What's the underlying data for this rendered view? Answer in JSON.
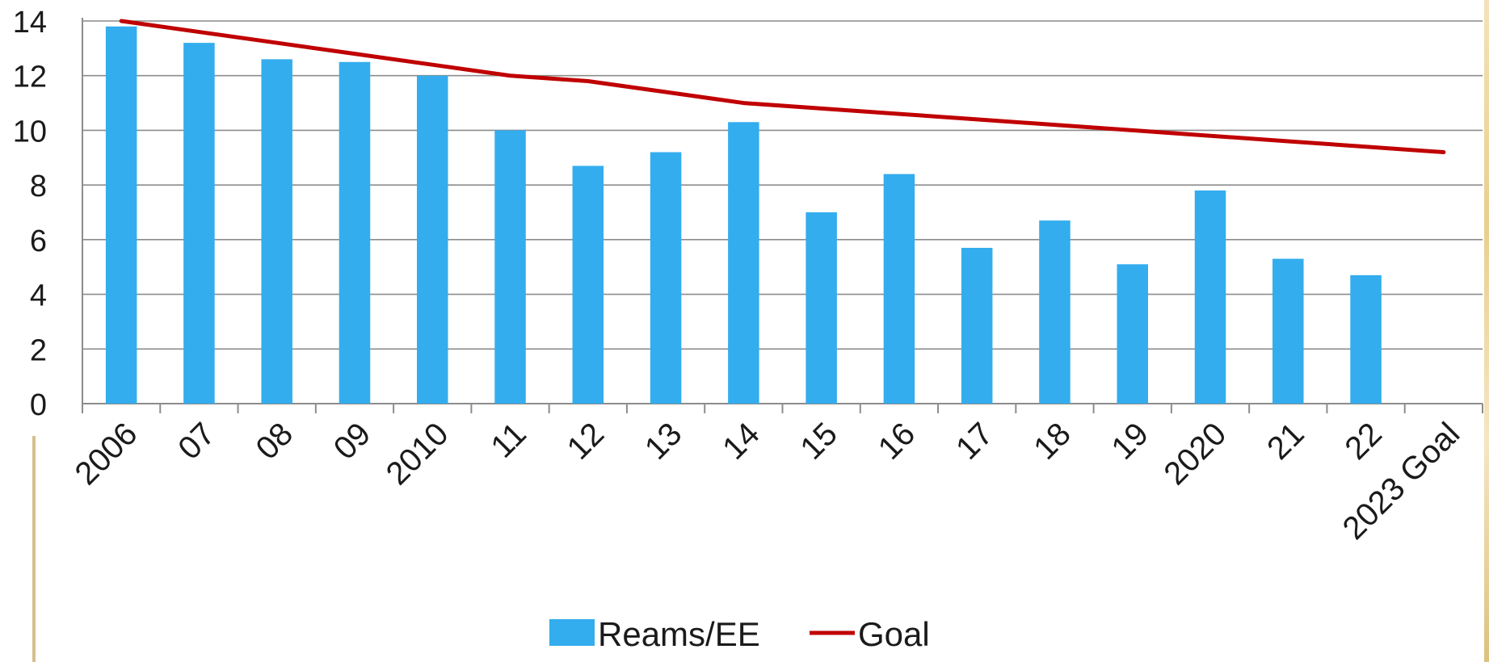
{
  "chart_data": {
    "type": "bar",
    "categories": [
      "2006",
      "07",
      "08",
      "09",
      "2010",
      "11",
      "12",
      "13",
      "14",
      "15",
      "16",
      "17",
      "18",
      "19",
      "2020",
      "21",
      "22",
      "2023 Goal"
    ],
    "series": [
      {
        "name": "Reams/EE",
        "type": "bar",
        "color": "#33adee",
        "values": [
          13.8,
          13.2,
          12.6,
          12.5,
          12.0,
          10.0,
          8.7,
          9.2,
          10.3,
          7.0,
          8.4,
          5.7,
          6.7,
          5.1,
          7.8,
          5.3,
          4.7,
          null
        ]
      },
      {
        "name": "Goal",
        "type": "line",
        "color": "#c00000",
        "values": [
          14.0,
          13.6,
          13.2,
          12.8,
          12.4,
          12.0,
          11.8,
          11.4,
          11.0,
          10.8,
          10.6,
          10.4,
          10.2,
          10.0,
          9.8,
          9.6,
          9.4,
          9.2
        ]
      }
    ],
    "y_ticks": [
      "0",
      "2",
      "4",
      "6",
      "8",
      "10",
      "12",
      "14"
    ],
    "ylim": [
      0,
      14
    ],
    "grid": true,
    "legend_position": "bottom",
    "title": "",
    "xlabel": "",
    "ylabel": ""
  }
}
